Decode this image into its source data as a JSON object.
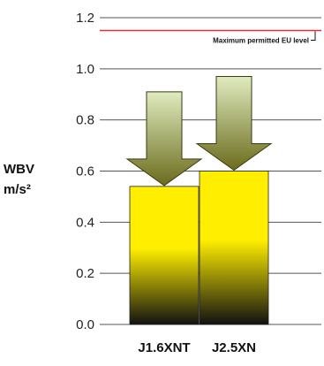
{
  "chart_data": {
    "type": "bar",
    "categories": [
      "J1.6XNT",
      "J2.5XN"
    ],
    "values": [
      0.54,
      0.6
    ],
    "arrow_top_values": [
      0.91,
      0.97
    ],
    "ylabel_line1": "WBV",
    "ylabel_line2": "m/s²",
    "ylim": [
      0,
      1.2
    ],
    "y_ticks": [
      "0.0",
      "0.2",
      "0.4",
      "0.6",
      "0.8",
      "1.0",
      "1.2"
    ],
    "limit_value": 1.15,
    "limit_label": "Maximum permitted EU level",
    "grid": true,
    "colors": {
      "bar_top": "#ffee00",
      "bar_bottom": "#111111",
      "arrow_top": "#e0ecc0",
      "arrow_bottom": "#6b6b1c",
      "limit_line": "#e53030",
      "grid": "#555555"
    }
  }
}
